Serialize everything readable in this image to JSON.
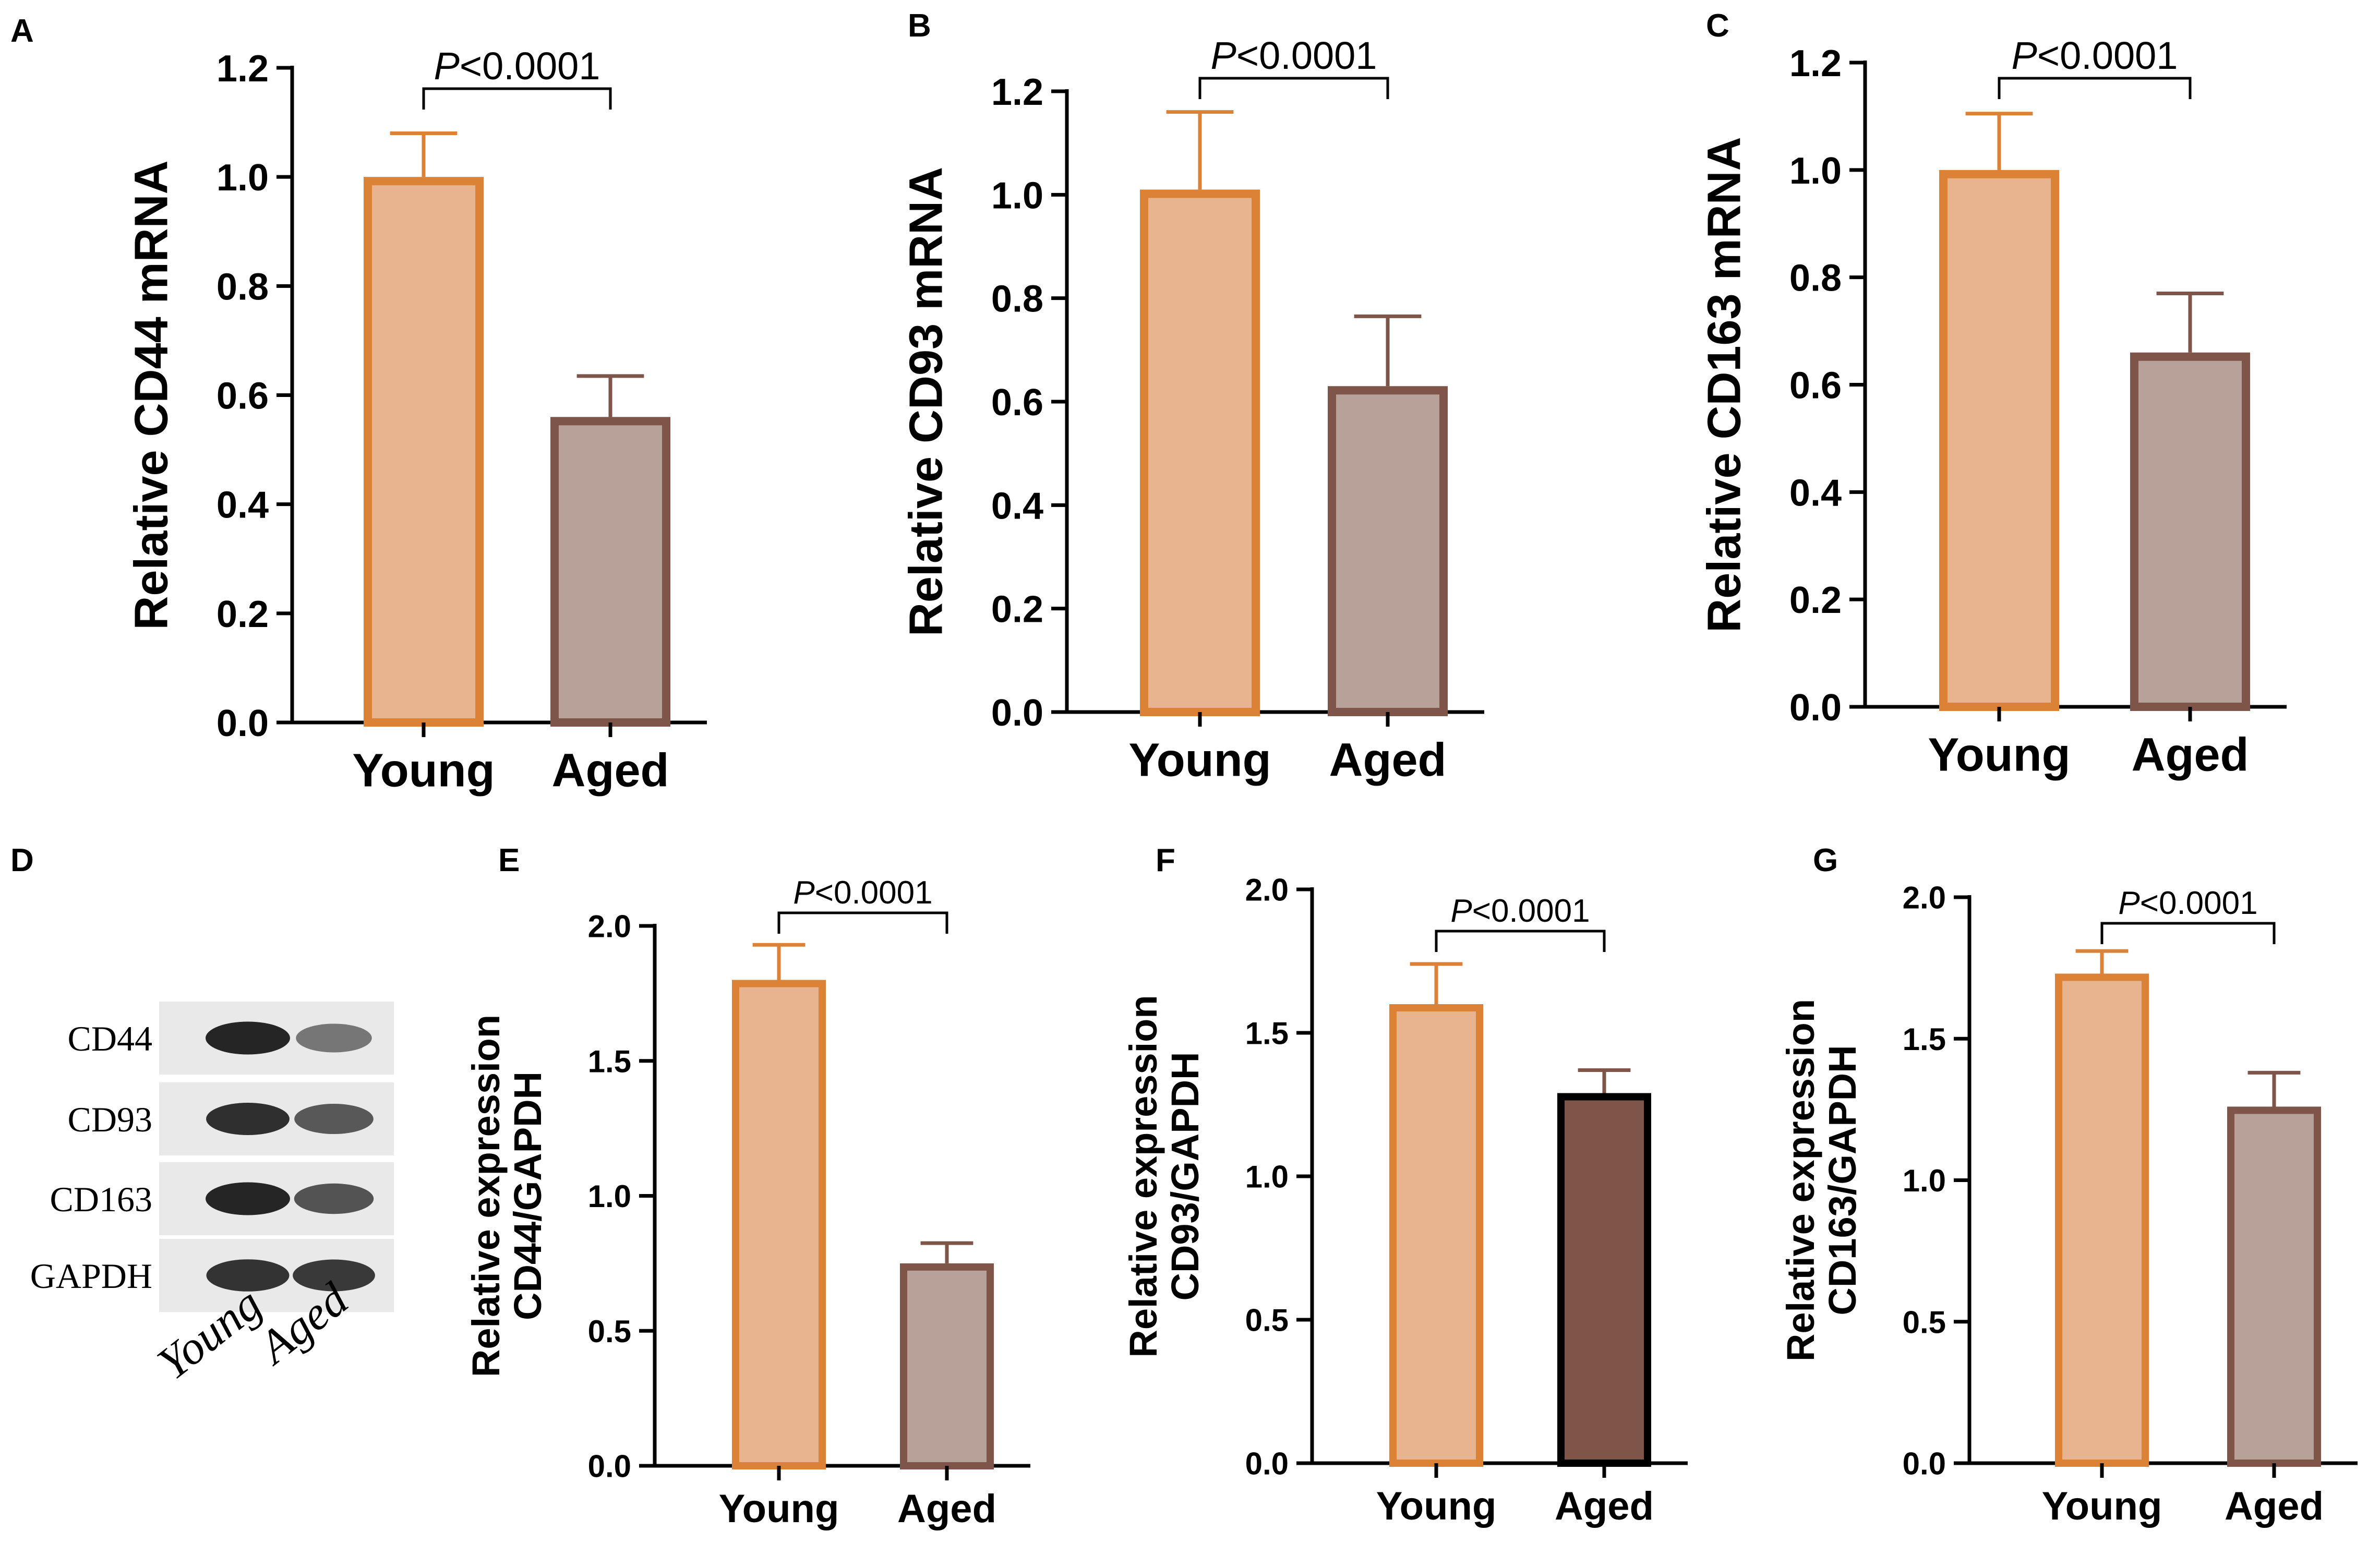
{
  "colors": {
    "young_fill": "#E8B490",
    "young_stroke": "#DB8236",
    "aged_fill": "#B7A198",
    "aged_stroke": "#7E5548",
    "aged_fill_dark": "#7E5548",
    "aged_stroke_dark": "#000000",
    "young_errbar": "#DB8236",
    "aged_errbar": "#7E5548",
    "axis": "#000000"
  },
  "blot": {
    "panel_label": "D",
    "rows": [
      "CD44",
      "CD93",
      "CD163",
      "GAPDH"
    ],
    "columns": [
      "Young",
      "Aged"
    ],
    "intensity": [
      [
        0.95,
        0.55
      ],
      [
        0.9,
        0.7
      ],
      [
        0.95,
        0.72
      ],
      [
        0.88,
        0.85
      ]
    ]
  },
  "chart_data": [
    {
      "panel_label": "A",
      "type": "bar",
      "categories": [
        "Young",
        "Aged"
      ],
      "values": [
        1.0,
        0.56
      ],
      "errors": [
        0.08,
        0.075
      ],
      "ylabel": [
        "Relative CD44 mRNA"
      ],
      "ylim": [
        0,
        1.2
      ],
      "yticks": [
        0.0,
        0.2,
        0.4,
        0.6,
        0.8,
        1.0,
        1.2
      ],
      "tick_labels": [
        "0.0",
        "0.2",
        "0.4",
        "0.6",
        "0.8",
        "1.0",
        "1.2"
      ],
      "significance": {
        "prefix": "P",
        "suffix": "<0.0001"
      },
      "aged_dark": false
    },
    {
      "panel_label": "B",
      "type": "bar",
      "categories": [
        "Young",
        "Aged"
      ],
      "values": [
        1.01,
        0.63
      ],
      "errors": [
        0.15,
        0.135
      ],
      "ylabel": [
        "Relative CD93 mRNA"
      ],
      "ylim": [
        0,
        1.2
      ],
      "yticks": [
        0.0,
        0.2,
        0.4,
        0.6,
        0.8,
        1.0,
        1.2
      ],
      "tick_labels": [
        "0.0",
        "0.2",
        "0.4",
        "0.6",
        "0.8",
        "1.0",
        "1.2"
      ],
      "significance": {
        "prefix": "P",
        "suffix": "<0.0001"
      },
      "aged_dark": false
    },
    {
      "panel_label": "C",
      "type": "bar",
      "categories": [
        "Young",
        "Aged"
      ],
      "values": [
        1.0,
        0.66
      ],
      "errors": [
        0.105,
        0.11
      ],
      "ylabel": [
        "Relative CD163 mRNA"
      ],
      "ylim": [
        0,
        1.2
      ],
      "yticks": [
        0.0,
        0.2,
        0.4,
        0.6,
        0.8,
        1.0,
        1.2
      ],
      "tick_labels": [
        "0.0",
        "0.2",
        "0.4",
        "0.6",
        "0.8",
        "1.0",
        "1.2"
      ],
      "significance": {
        "prefix": "P",
        "suffix": "<0.0001"
      },
      "aged_dark": false
    },
    {
      "panel_label": "E",
      "type": "bar",
      "categories": [
        "Young",
        "Aged"
      ],
      "values": [
        1.8,
        0.75
      ],
      "errors": [
        0.13,
        0.075
      ],
      "ylabel": [
        "Relative expression",
        "CD44/GAPDH"
      ],
      "ylim": [
        0,
        2.0
      ],
      "yticks": [
        0.0,
        0.5,
        1.0,
        1.5,
        2.0
      ],
      "tick_labels": [
        "0.0",
        "0.5",
        "1.0",
        "1.5",
        "2.0"
      ],
      "significance": {
        "prefix": "P",
        "suffix": "<0.0001"
      },
      "aged_dark": false
    },
    {
      "panel_label": "F",
      "type": "bar",
      "categories": [
        "Young",
        "Aged"
      ],
      "values": [
        1.6,
        1.29
      ],
      "errors": [
        0.14,
        0.08
      ],
      "ylabel": [
        "Relative expression",
        "CD93/GAPDH"
      ],
      "ylim": [
        0,
        2.0
      ],
      "yticks": [
        0.0,
        0.5,
        1.0,
        1.5,
        2.0
      ],
      "tick_labels": [
        "0.0",
        "0.5",
        "1.0",
        "1.5",
        "2.0"
      ],
      "significance": {
        "prefix": "P",
        "suffix": "<0.0001"
      },
      "aged_dark": true
    },
    {
      "panel_label": "G",
      "type": "bar",
      "categories": [
        "Young",
        "Aged"
      ],
      "values": [
        1.73,
        1.26
      ],
      "errors": [
        0.08,
        0.12
      ],
      "ylabel": [
        "Relative expression",
        "CD163/GAPDH"
      ],
      "ylim": [
        0,
        2.0
      ],
      "yticks": [
        0.0,
        0.5,
        1.0,
        1.5,
        2.0
      ],
      "tick_labels": [
        "0.0",
        "0.5",
        "1.0",
        "1.5",
        "2.0"
      ],
      "significance": {
        "prefix": "P",
        "suffix": "<0.0001"
      },
      "aged_dark": false
    }
  ]
}
